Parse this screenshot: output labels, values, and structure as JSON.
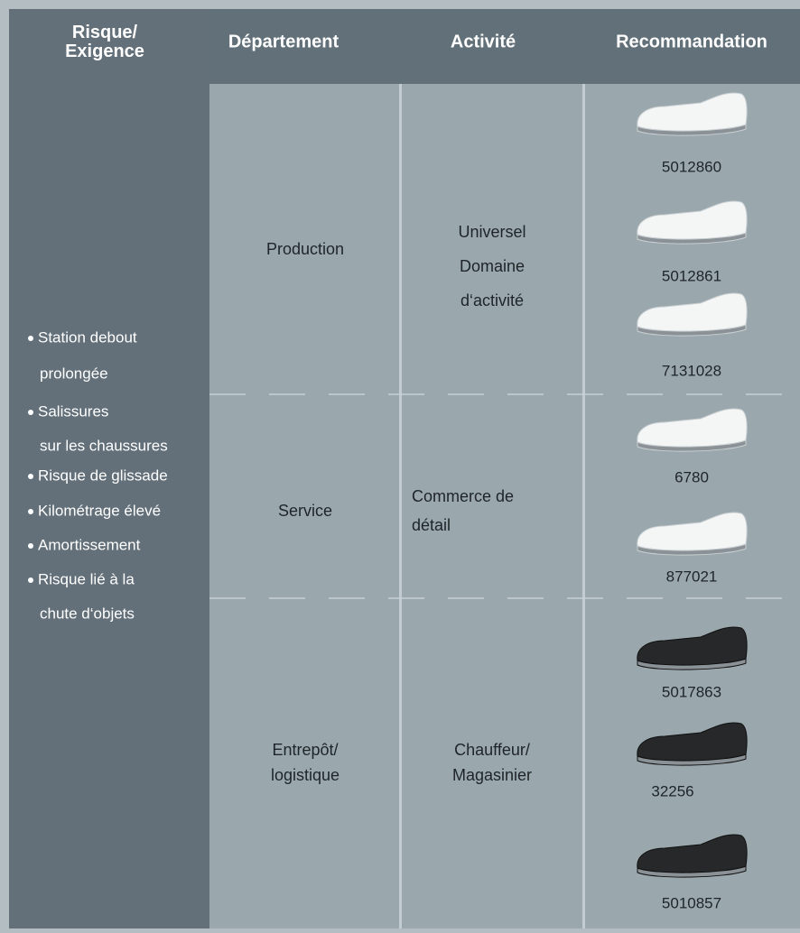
{
  "header": {
    "columns": [
      [
        "Risque/",
        "Exigence"
      ],
      [
        "Département"
      ],
      [
        "Activité"
      ],
      [
        "Recommandation"
      ]
    ]
  },
  "risks": [
    [
      "Station debout",
      "prolongée"
    ],
    [
      "Salissures",
      "sur les chaussures"
    ],
    [
      "Risque de glissade"
    ],
    [
      "Kilométrage élevé"
    ],
    [
      "Amortissement"
    ],
    [
      "Risque lié à la",
      "chute d‘objets"
    ]
  ],
  "rows": [
    {
      "department": [
        "Production"
      ],
      "activity": [
        "Universel",
        "Domaine",
        "d‘activité"
      ],
      "products": [
        "5012860",
        "5012861",
        "7131028"
      ]
    },
    {
      "department": [
        "Service"
      ],
      "activity": [
        "Commerce de",
        "détail"
      ],
      "products": [
        "6780",
        "877021"
      ]
    },
    {
      "department": [
        "Entrepôt/",
        "logistique"
      ],
      "activity": [
        "Chauffeur/",
        "Magasinier"
      ],
      "products": [
        "5017863",
        "32256",
        "5010857"
      ]
    }
  ]
}
